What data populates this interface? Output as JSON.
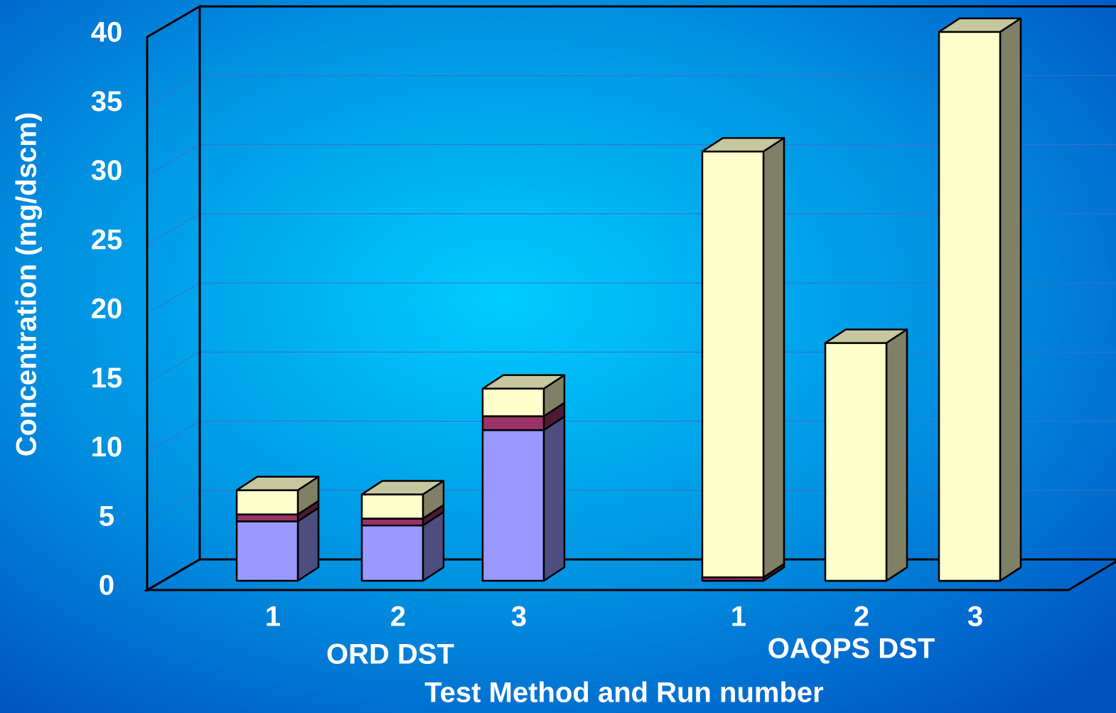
{
  "chart_data": {
    "type": "bar",
    "stacked": true,
    "three_d": true,
    "y_label": "Concentration (mg/dscm)",
    "x_label": "Test Method and Run number",
    "categories": [
      "1",
      "2",
      "3",
      "1",
      "2",
      "3"
    ],
    "groups": [
      {
        "name": "ORD DST",
        "categories": [
          0,
          1,
          2
        ]
      },
      {
        "name": "OAQPS DST",
        "categories": [
          3,
          4,
          5
        ]
      }
    ],
    "series": [
      {
        "color": "#9999ff",
        "values": [
          4.3,
          4.0,
          10.9,
          0,
          0,
          0
        ]
      },
      {
        "color": "#993366",
        "values": [
          0.5,
          0.5,
          1.0,
          0.25,
          0,
          0
        ]
      },
      {
        "color": "#ffffcc",
        "values": [
          1.75,
          1.75,
          2.0,
          30.8,
          17.2,
          39.7
        ]
      }
    ],
    "ylim": [
      0,
      40
    ],
    "yticks": [
      0,
      5,
      10,
      15,
      20,
      25,
      30,
      35,
      40
    ],
    "grid": true
  }
}
